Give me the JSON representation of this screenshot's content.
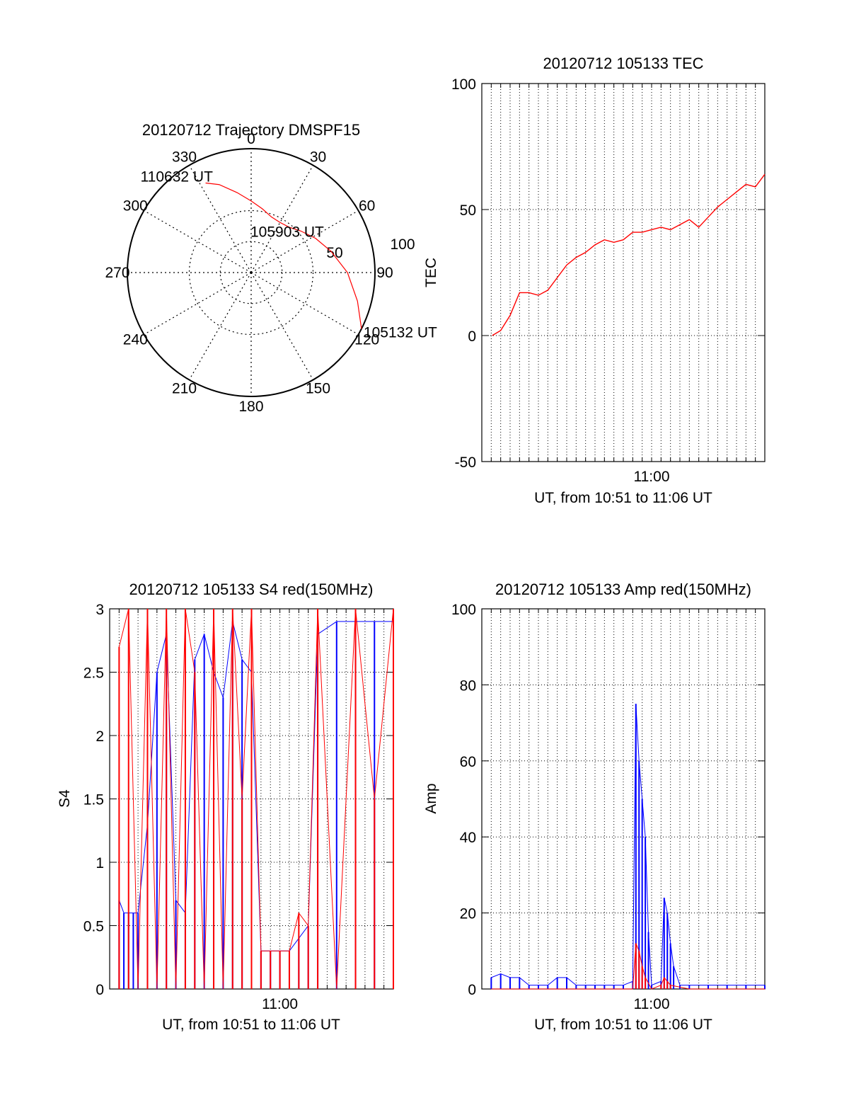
{
  "chart_data": [
    {
      "type": "polar",
      "title": "20120712 Trajectory DMSPF15",
      "angle_ticks": [
        "0",
        "30",
        "60",
        "90",
        "120",
        "150",
        "180",
        "210",
        "240",
        "270",
        "300",
        "330"
      ],
      "radial_ticks": [
        "50",
        "100"
      ],
      "series": [
        {
          "color": "#ff0000",
          "azimuth_deg": [
            117,
            105,
            90,
            75,
            62,
            50,
            40,
            30,
            20,
            10,
            0,
            350,
            340,
            333
          ],
          "elevation_deg": [
            0,
            10,
            20,
            30,
            37,
            43,
            47,
            48,
            47,
            43,
            38,
            31,
            22,
            17
          ]
        }
      ],
      "annotations": [
        {
          "text": "110632 UT",
          "azimuth_deg": 333,
          "elevation_deg": 17
        },
        {
          "text": "105903 UT",
          "azimuth_deg": 62,
          "elevation_deg": 37
        },
        {
          "text": "105132 UT",
          "azimuth_deg": 117,
          "elevation_deg": 0
        }
      ]
    },
    {
      "type": "line",
      "title": "20120712 105133 TEC",
      "xlabel": "UT, from 10:51 to 11:06 UT",
      "ylabel": "TEC",
      "x_ticks": [
        "11:00"
      ],
      "y_ticks": [
        "-50",
        "0",
        "50",
        "100"
      ],
      "xlim": [
        "10:51",
        "11:06"
      ],
      "ylim": [
        -50,
        100
      ],
      "grid": true,
      "series": [
        {
          "color": "#ff0000",
          "x": [
            "10:51:33",
            "10:52:00",
            "10:52:30",
            "10:53:00",
            "10:53:30",
            "10:54:00",
            "10:54:30",
            "10:55:00",
            "10:55:30",
            "10:56:00",
            "10:56:30",
            "10:57:00",
            "10:57:30",
            "10:58:00",
            "10:58:30",
            "10:59:00",
            "10:59:30",
            "11:00:00",
            "11:00:30",
            "11:01:00",
            "11:01:30",
            "11:02:00",
            "11:02:30",
            "11:03:00",
            "11:03:30",
            "11:04:00",
            "11:04:30",
            "11:05:00",
            "11:05:30",
            "11:06:00"
          ],
          "y": [
            0,
            2,
            8,
            17,
            17,
            16,
            18,
            23,
            28,
            31,
            33,
            36,
            38,
            37,
            38,
            41,
            41,
            42,
            43,
            42,
            44,
            46,
            43,
            47,
            51,
            54,
            57,
            60,
            59,
            64
          ]
        }
      ]
    },
    {
      "type": "line",
      "title": "20120712 105133 S4 red(150MHz)",
      "xlabel": "UT, from 10:51 to 11:06 UT",
      "ylabel": "S4",
      "x_ticks": [
        "11:00"
      ],
      "y_ticks": [
        "0",
        "0.5",
        "1",
        "1.5",
        "2",
        "2.5",
        "3"
      ],
      "xlim": [
        "10:51",
        "11:06"
      ],
      "ylim": [
        0,
        3
      ],
      "grid": true,
      "series": [
        {
          "color": "#0000ff",
          "x": [
            "10:51:30",
            "10:51:45",
            "10:52:00",
            "10:52:15",
            "10:52:30",
            "10:53:00",
            "10:53:30",
            "10:54:00",
            "10:54:30",
            "10:55:00",
            "10:55:30",
            "10:56:00",
            "10:56:30",
            "10:57:00",
            "10:57:30",
            "10:58:00",
            "10:58:30",
            "10:59:00",
            "10:59:30",
            "11:00:00",
            "11:00:30",
            "11:01:00",
            "11:01:30",
            "11:02:00",
            "11:03:00",
            "11:04:00",
            "11:05:00",
            "11:06:00"
          ],
          "y": [
            0.7,
            0.6,
            0.6,
            0.6,
            0.6,
            1.3,
            2.5,
            2.8,
            0.7,
            0.6,
            2.6,
            2.8,
            2.5,
            2.3,
            2.9,
            2.6,
            2.5,
            0.3,
            0.3,
            0.3,
            0.3,
            0.4,
            0.5,
            2.8,
            2.9,
            2.9,
            2.9,
            2.9
          ]
        },
        {
          "color": "#ff0000",
          "x": [
            "10:51:30",
            "10:52:00",
            "10:52:30",
            "10:53:00",
            "10:53:30",
            "10:54:00",
            "10:54:30",
            "10:55:00",
            "10:55:30",
            "10:56:00",
            "10:56:30",
            "10:57:00",
            "10:57:30",
            "10:58:00",
            "10:58:30",
            "10:59:00",
            "10:59:30",
            "11:00:00",
            "11:00:30",
            "11:01:00",
            "11:01:30",
            "11:02:00",
            "11:03:00",
            "11:04:00",
            "11:05:00",
            "11:06:00"
          ],
          "y": [
            2.7,
            3.0,
            0,
            3.0,
            0,
            3.0,
            0,
            3.0,
            2.5,
            0,
            3.0,
            0,
            3.0,
            1.5,
            3.0,
            0.3,
            0.3,
            0.3,
            0.3,
            0.6,
            0.5,
            3.0,
            0,
            3.0,
            1.5,
            3.0
          ]
        }
      ]
    },
    {
      "type": "line",
      "title": "20120712 105133 Amp red(150MHz)",
      "xlabel": "UT, from 10:51 to 11:06 UT",
      "ylabel": "Amp",
      "x_ticks": [
        "11:00"
      ],
      "y_ticks": [
        "0",
        "20",
        "40",
        "60",
        "80",
        "100"
      ],
      "xlim": [
        "10:51",
        "11:06"
      ],
      "ylim": [
        0,
        100
      ],
      "grid": true,
      "series": [
        {
          "color": "#0000ff",
          "x": [
            "10:51:30",
            "10:52:00",
            "10:52:30",
            "10:53:00",
            "10:53:30",
            "10:54:00",
            "10:54:30",
            "10:55:00",
            "10:55:30",
            "10:56:00",
            "10:56:30",
            "10:57:00",
            "10:57:30",
            "10:58:00",
            "10:58:30",
            "10:59:00",
            "10:59:10",
            "10:59:20",
            "10:59:30",
            "10:59:40",
            "10:59:50",
            "11:00:00",
            "11:00:30",
            "11:00:40",
            "11:00:50",
            "11:01:00",
            "11:01:10",
            "11:01:30",
            "11:02:00",
            "11:03:00",
            "11:04:00",
            "11:05:00",
            "11:06:00"
          ],
          "y": [
            3,
            4,
            3,
            3,
            1,
            1,
            1,
            3,
            3,
            1,
            1,
            1,
            1,
            1,
            1,
            2,
            75,
            60,
            50,
            40,
            15,
            1,
            2,
            24,
            20,
            12,
            6,
            1,
            1,
            1,
            1,
            1,
            1
          ]
        },
        {
          "color": "#ff0000",
          "x": [
            "10:51:30",
            "10:59:00",
            "10:59:10",
            "10:59:20",
            "10:59:30",
            "10:59:40",
            "11:00:00",
            "11:00:30",
            "11:00:40",
            "11:00:50",
            "11:01:00",
            "11:02:00",
            "11:06:00"
          ],
          "y": [
            0,
            0,
            12,
            10,
            6,
            3,
            0,
            1,
            3,
            2,
            1,
            0,
            0
          ]
        }
      ]
    }
  ]
}
